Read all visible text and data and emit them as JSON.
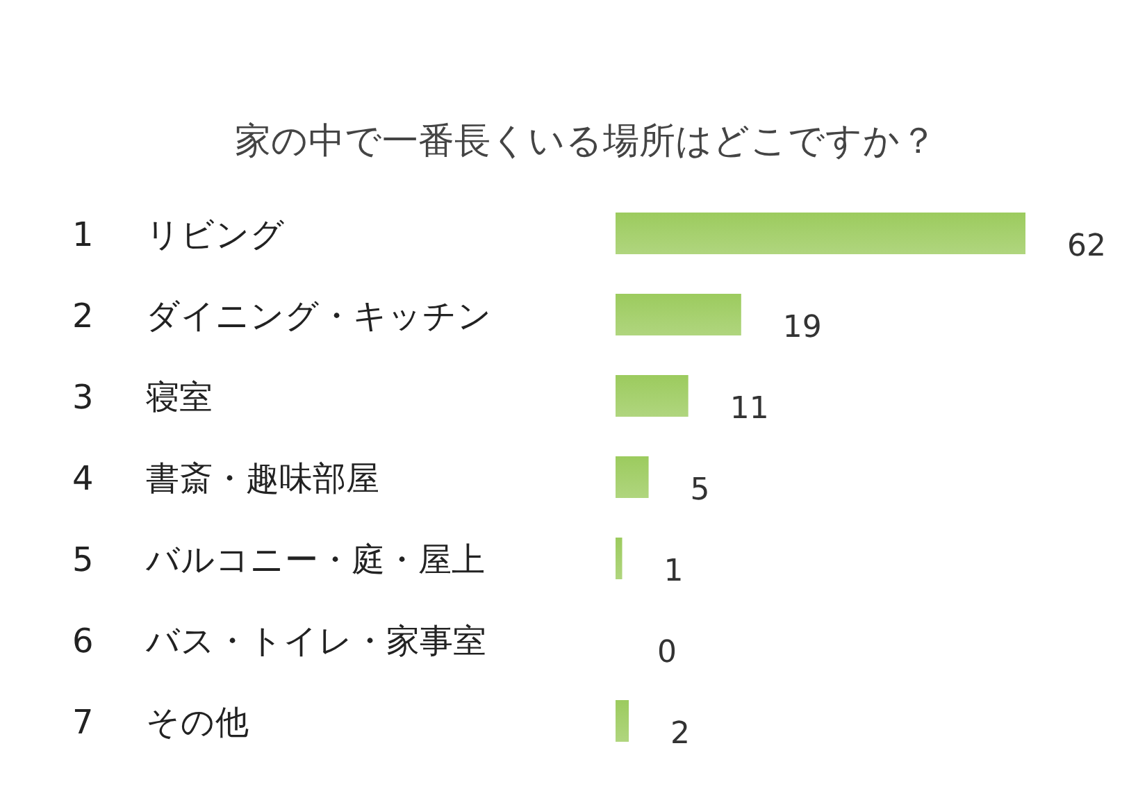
{
  "chart_data": {
    "type": "bar",
    "orientation": "horizontal",
    "title": "家の中で一番長くいる場所はどこですか？",
    "categories": [
      "1 リビング",
      "2 ダイニング・キッチン",
      "3 寝室",
      "4 書斎・趣味部屋",
      "5 バルコニー・庭・屋上",
      "6 バス・トイレ・家事室",
      "7 その他"
    ],
    "values": [
      62,
      19,
      11,
      5,
      1,
      0,
      2
    ],
    "color": "#9ccb5e",
    "data_labels": true
  }
}
